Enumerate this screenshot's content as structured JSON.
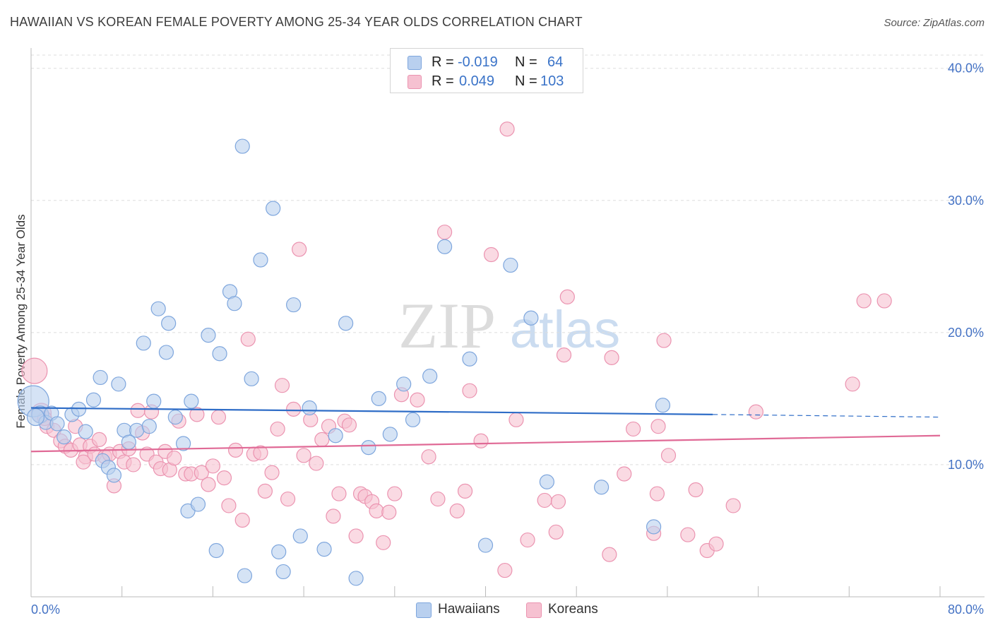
{
  "title": "HAWAIIAN VS KOREAN FEMALE POVERTY AMONG 25-34 YEAR OLDS CORRELATION CHART",
  "source": "Source: ZipAtlas.com",
  "watermark": {
    "zip": "ZIP",
    "atlas": "atlas"
  },
  "legend": {
    "rows": [
      {
        "r_label": "R =",
        "r_value": "-0.019",
        "n_label": "N =",
        "n_value": "64"
      },
      {
        "r_label": "R =",
        "r_value": "0.049",
        "n_label": "N =",
        "n_value": "103"
      }
    ]
  },
  "bottom_legend": {
    "hawaiians": "Hawaiians",
    "koreans": "Koreans"
  },
  "colors": {
    "hawaiian_fill": "#b9d0ef",
    "hawaiian_stroke": "#7ea6dd",
    "hawaiian_line": "#2f6dc7",
    "korean_fill": "#f6c1d1",
    "korean_stroke": "#eb93b0",
    "korean_line": "#e06a96",
    "tick": "#4472c4"
  },
  "chart_data": {
    "type": "scatter",
    "title": "HAWAIIAN VS KOREAN FEMALE POVERTY AMONG 25-34 YEAR OLDS CORRELATION CHART",
    "xlabel": "",
    "ylabel": "Female Poverty Among 25-34 Year Olds",
    "xlim": [
      0,
      80
    ],
    "ylim": [
      0,
      41
    ],
    "x_tick_labels": [
      "0.0%",
      "80.0%"
    ],
    "y_ticks": [
      10,
      20,
      30,
      40
    ],
    "y_tick_labels": [
      "10.0%",
      "20.0%",
      "30.0%",
      "40.0%"
    ],
    "grid": true,
    "legend_position": "top-center",
    "series": [
      {
        "name": "Hawaiians",
        "r": -0.019,
        "n": 64,
        "trend": {
          "x0": 0,
          "y0": 14.3,
          "x1": 60,
          "y1": 13.8,
          "dash_to_x": 80,
          "dash_y": 13.6
        },
        "points": [
          [
            0.2,
            14.8,
            22
          ],
          [
            0.8,
            13.8,
            12
          ],
          [
            1.3,
            13.2,
            10
          ],
          [
            1.8,
            13.9,
            10
          ],
          [
            2.3,
            13.1,
            10
          ],
          [
            2.9,
            12.1,
            10
          ],
          [
            3.6,
            13.8,
            10
          ],
          [
            4.2,
            14.2,
            10
          ],
          [
            4.8,
            12.5,
            10
          ],
          [
            5.5,
            14.9,
            10
          ],
          [
            6.1,
            16.6,
            10
          ],
          [
            6.3,
            10.3,
            10
          ],
          [
            6.8,
            9.8,
            10
          ],
          [
            7.3,
            9.2,
            10
          ],
          [
            7.7,
            16.1,
            10
          ],
          [
            8.2,
            12.6,
            10
          ],
          [
            8.6,
            11.7,
            10
          ],
          [
            9.3,
            12.6,
            10
          ],
          [
            9.9,
            19.2,
            10
          ],
          [
            10.4,
            12.9,
            10
          ],
          [
            10.8,
            14.8,
            10
          ],
          [
            11.2,
            21.8,
            10
          ],
          [
            11.9,
            18.5,
            10
          ],
          [
            12.1,
            20.7,
            10
          ],
          [
            12.7,
            13.6,
            10
          ],
          [
            13.4,
            11.6,
            10
          ],
          [
            13.8,
            6.5,
            10
          ],
          [
            14.1,
            14.8,
            10
          ],
          [
            14.7,
            7.0,
            10
          ],
          [
            15.6,
            19.8,
            10
          ],
          [
            16.3,
            3.5,
            10
          ],
          [
            16.6,
            18.4,
            10
          ],
          [
            17.5,
            23.1,
            10
          ],
          [
            17.9,
            22.2,
            10
          ],
          [
            18.6,
            34.1,
            10
          ],
          [
            18.8,
            1.6,
            10
          ],
          [
            19.4,
            16.5,
            10
          ],
          [
            20.2,
            25.5,
            10
          ],
          [
            21.3,
            29.4,
            10
          ],
          [
            21.8,
            3.4,
            10
          ],
          [
            22.2,
            1.9,
            10
          ],
          [
            23.1,
            22.1,
            10
          ],
          [
            23.7,
            4.6,
            10
          ],
          [
            24.5,
            14.3,
            10
          ],
          [
            25.8,
            3.6,
            10
          ],
          [
            26.8,
            12.2,
            10
          ],
          [
            27.7,
            20.7,
            10
          ],
          [
            28.6,
            1.4,
            10
          ],
          [
            29.7,
            11.3,
            10
          ],
          [
            30.6,
            15.0,
            10
          ],
          [
            31.6,
            12.3,
            10
          ],
          [
            32.8,
            16.1,
            10
          ],
          [
            33.6,
            13.4,
            10
          ],
          [
            35.1,
            16.7,
            10
          ],
          [
            36.4,
            26.5,
            10
          ],
          [
            38.6,
            18.0,
            10
          ],
          [
            40.0,
            3.9,
            10
          ],
          [
            42.2,
            25.1,
            10
          ],
          [
            44.0,
            21.1,
            10
          ],
          [
            45.4,
            8.7,
            10
          ],
          [
            50.2,
            8.3,
            10
          ],
          [
            54.8,
            5.3,
            10
          ],
          [
            55.6,
            14.5,
            10
          ],
          [
            0.4,
            13.6,
            12
          ]
        ]
      },
      {
        "name": "Koreans",
        "r": 0.049,
        "n": 103,
        "trend": {
          "x0": 0,
          "y0": 11.0,
          "x1": 80,
          "y1": 12.2
        },
        "points": [
          [
            0.3,
            17.1,
            18
          ],
          [
            0.9,
            13.9,
            14
          ],
          [
            1.4,
            12.9,
            10
          ],
          [
            2.0,
            12.6,
            10
          ],
          [
            2.6,
            11.8,
            10
          ],
          [
            3.0,
            11.4,
            10
          ],
          [
            3.5,
            11.1,
            10
          ],
          [
            3.9,
            12.9,
            10
          ],
          [
            4.3,
            11.5,
            10
          ],
          [
            4.8,
            10.6,
            10
          ],
          [
            5.2,
            11.4,
            10
          ],
          [
            5.6,
            10.8,
            10
          ],
          [
            6.0,
            11.9,
            10
          ],
          [
            6.5,
            10.6,
            10
          ],
          [
            6.9,
            10.8,
            10
          ],
          [
            7.3,
            8.4,
            10
          ],
          [
            7.8,
            11.0,
            10
          ],
          [
            8.2,
            10.2,
            10
          ],
          [
            8.6,
            11.2,
            10
          ],
          [
            9.0,
            10.0,
            10
          ],
          [
            9.4,
            14.1,
            10
          ],
          [
            9.8,
            12.4,
            10
          ],
          [
            10.2,
            10.8,
            10
          ],
          [
            10.6,
            14.0,
            10
          ],
          [
            11.0,
            10.2,
            10
          ],
          [
            11.4,
            9.7,
            10
          ],
          [
            11.8,
            11.0,
            10
          ],
          [
            12.2,
            9.6,
            10
          ],
          [
            12.6,
            10.5,
            10
          ],
          [
            13.0,
            13.3,
            10
          ],
          [
            13.6,
            9.3,
            10
          ],
          [
            14.1,
            9.3,
            10
          ],
          [
            14.6,
            13.8,
            10
          ],
          [
            15.0,
            9.4,
            10
          ],
          [
            15.6,
            8.5,
            10
          ],
          [
            16.0,
            9.9,
            10
          ],
          [
            16.5,
            13.6,
            10
          ],
          [
            17.0,
            9.0,
            10
          ],
          [
            17.4,
            6.9,
            10
          ],
          [
            18.0,
            11.1,
            10
          ],
          [
            18.6,
            5.8,
            10
          ],
          [
            19.1,
            19.5,
            10
          ],
          [
            19.6,
            10.8,
            10
          ],
          [
            20.2,
            10.9,
            10
          ],
          [
            20.6,
            8.0,
            10
          ],
          [
            21.2,
            9.4,
            10
          ],
          [
            21.7,
            12.7,
            10
          ],
          [
            22.1,
            16.0,
            10
          ],
          [
            22.6,
            7.4,
            10
          ],
          [
            23.1,
            14.2,
            10
          ],
          [
            23.6,
            26.3,
            10
          ],
          [
            24.0,
            10.7,
            10
          ],
          [
            24.6,
            13.4,
            10
          ],
          [
            25.1,
            10.1,
            10
          ],
          [
            25.6,
            11.9,
            10
          ],
          [
            26.2,
            12.9,
            10
          ],
          [
            26.6,
            6.1,
            10
          ],
          [
            27.1,
            7.8,
            10
          ],
          [
            27.6,
            13.3,
            10
          ],
          [
            28.0,
            13.0,
            10
          ],
          [
            28.6,
            4.6,
            10
          ],
          [
            29.0,
            7.8,
            10
          ],
          [
            29.4,
            7.6,
            10
          ],
          [
            30.0,
            7.2,
            10
          ],
          [
            30.4,
            6.5,
            10
          ],
          [
            31.0,
            4.1,
            10
          ],
          [
            31.5,
            6.4,
            10
          ],
          [
            32.0,
            7.8,
            10
          ],
          [
            32.6,
            15.3,
            10
          ],
          [
            34.0,
            14.9,
            10
          ],
          [
            35.0,
            10.6,
            10
          ],
          [
            35.8,
            7.4,
            10
          ],
          [
            36.4,
            27.6,
            10
          ],
          [
            37.5,
            6.5,
            10
          ],
          [
            38.2,
            8.0,
            10
          ],
          [
            38.6,
            15.6,
            10
          ],
          [
            39.6,
            11.8,
            10
          ],
          [
            40.5,
            25.9,
            10
          ],
          [
            41.7,
            2.0,
            10
          ],
          [
            41.9,
            35.4,
            10
          ],
          [
            42.7,
            13.4,
            10
          ],
          [
            43.7,
            4.3,
            10
          ],
          [
            45.2,
            7.3,
            10
          ],
          [
            46.2,
            4.9,
            10
          ],
          [
            46.4,
            7.2,
            10
          ],
          [
            46.9,
            18.3,
            10
          ],
          [
            47.2,
            22.7,
            10
          ],
          [
            50.9,
            3.2,
            10
          ],
          [
            51.1,
            18.1,
            10
          ],
          [
            52.2,
            9.3,
            10
          ],
          [
            53.0,
            12.7,
            10
          ],
          [
            54.8,
            4.8,
            10
          ],
          [
            55.1,
            7.8,
            10
          ],
          [
            55.2,
            12.9,
            10
          ],
          [
            55.7,
            19.4,
            10
          ],
          [
            56.1,
            10.7,
            10
          ],
          [
            57.8,
            4.7,
            10
          ],
          [
            58.5,
            8.1,
            10
          ],
          [
            59.5,
            3.5,
            10
          ],
          [
            60.3,
            4.0,
            10
          ],
          [
            61.8,
            6.9,
            10
          ],
          [
            63.8,
            14.0,
            10
          ],
          [
            72.3,
            16.1,
            10
          ],
          [
            73.3,
            22.4,
            10
          ],
          [
            75.1,
            22.4,
            10
          ],
          [
            1.2,
            13.5,
            10
          ],
          [
            4.6,
            10.2,
            10
          ]
        ]
      }
    ]
  }
}
